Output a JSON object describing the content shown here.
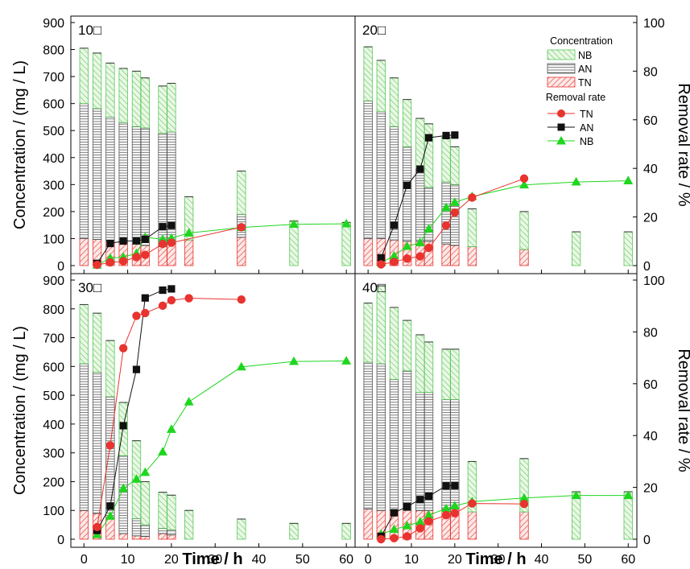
{
  "chart_data": {
    "type": "bar+line",
    "ylabel": "Concentration / (mg / L)",
    "y2label": "Removal rate / %",
    "xlabel": "Time / h",
    "xlim": [
      -3,
      62
    ],
    "ylim": [
      0,
      900
    ],
    "y2lim": [
      0,
      100
    ],
    "x_ticks": [
      0,
      10,
      20,
      30,
      40,
      50,
      60
    ],
    "y_ticks": [
      0,
      100,
      200,
      300,
      400,
      500,
      600,
      700,
      800,
      900
    ],
    "y2_ticks": [
      0,
      20,
      40,
      60,
      80,
      100
    ],
    "colors": {
      "TN": "#e8332f",
      "AN": "#111111",
      "NB": "#1fd61f",
      "bar_TN": "#e8332f",
      "bar_AN": "#555555",
      "bar_NB": "#5ac85a"
    },
    "legend": {
      "concentration_title": "Concentration",
      "concentration_items": [
        "NB",
        "AN",
        "TN"
      ],
      "removal_title": "Removal rate",
      "removal_items": [
        "TN",
        "AN",
        "NB"
      ]
    },
    "panels": [
      {
        "label": "10□",
        "time": [
          0,
          3,
          6,
          9,
          12,
          14,
          18,
          20,
          24,
          36,
          48,
          60
        ],
        "TN": [
          100,
          97,
          90,
          85,
          80,
          75,
          70,
          80,
          95,
          105,
          null,
          null
        ],
        "AN": [
          500,
          485,
          460,
          445,
          435,
          435,
          420,
          415,
          null,
          85,
          null,
          null
        ],
        "NB": [
          205,
          205,
          200,
          200,
          205,
          185,
          175,
          180,
          160,
          160,
          165,
          160
        ],
        "removal": {
          "TN": {
            "x": [
              3,
              6,
              9,
              12,
              14,
              18,
              20,
              36
            ],
            "y": [
              0.3,
              1.3,
              1.8,
              3.5,
              4.4,
              8.9,
              9.4,
              15.8
            ]
          },
          "AN": {
            "x": [
              3,
              6,
              9,
              12,
              14,
              18,
              20
            ],
            "y": [
              0.9,
              9.1,
              10.1,
              10.2,
              10.8,
              16.0,
              16.5
            ]
          },
          "NB": {
            "x": [
              3,
              6,
              9,
              12,
              14,
              18,
              20,
              24,
              36,
              48,
              60
            ],
            "y": [
              0.2,
              3.1,
              3.5,
              5.0,
              11.7,
              10.8,
              11.3,
              13.4,
              15.7,
              17.0,
              17.2
            ]
          }
        }
      },
      {
        "label": "20□",
        "time": [
          0,
          3,
          6,
          9,
          12,
          14,
          18,
          20,
          24,
          36,
          48,
          60
        ],
        "TN": [
          100,
          100,
          95,
          90,
          90,
          90,
          80,
          75,
          70,
          60,
          null,
          null
        ],
        "AN": [
          510,
          470,
          420,
          350,
          270,
          200,
          230,
          225,
          null,
          null,
          null,
          null
        ],
        "NB": [
          200,
          190,
          180,
          175,
          185,
          235,
          165,
          140,
          140,
          140,
          125,
          125
        ],
        "removal": {
          "TN": {
            "x": [
              3,
              6,
              9,
              12,
              14,
              18,
              20,
              24,
              36
            ],
            "y": [
              0.5,
              1.5,
              2.9,
              3.8,
              7.3,
              16.5,
              21.8,
              28.0,
              35.8
            ]
          },
          "AN": {
            "x": [
              3,
              6,
              9,
              12,
              14,
              18,
              20
            ],
            "y": [
              3.2,
              16.6,
              33.0,
              39.7,
              52.6,
              53.5,
              53.7
            ]
          },
          "NB": {
            "x": [
              3,
              6,
              9,
              12,
              14,
              18,
              20,
              24,
              36,
              48,
              60
            ],
            "y": [
              1.2,
              4.0,
              7.9,
              9.4,
              15.1,
              23.9,
              26.0,
              28.4,
              33.2,
              34.4,
              34.9
            ]
          }
        }
      },
      {
        "label": "30□",
        "time": [
          0,
          3,
          6,
          9,
          12,
          14,
          18,
          20,
          24,
          36,
          48,
          60
        ],
        "TN": [
          100,
          90,
          75,
          20,
          12,
          10,
          20,
          15,
          null,
          null,
          null,
          null
        ],
        "AN": [
          510,
          490,
          420,
          270,
          60,
          40,
          18,
          18,
          null,
          null,
          null,
          null
        ],
        "NB": [
          205,
          205,
          195,
          185,
          270,
          150,
          125,
          120,
          100,
          70,
          55,
          55
        ],
        "removal": {
          "TN": {
            "x": [
              3,
              6,
              9,
              12,
              14,
              18,
              20,
              24,
              36
            ],
            "y": [
              4.7,
              36.2,
              73.7,
              86.2,
              87.3,
              90.1,
              92.2,
              93.0,
              92.5
            ]
          },
          "AN": {
            "x": [
              3,
              6,
              9,
              12,
              14,
              18,
              20
            ],
            "y": [
              3.4,
              12.8,
              43.8,
              65.5,
              93.1,
              96.1,
              96.6
            ]
          },
          "NB": {
            "x": [
              3,
              6,
              9,
              12,
              14,
              18,
              20,
              24,
              36,
              48,
              60
            ],
            "y": [
              1.8,
              8.9,
              19.6,
              23.2,
              25.8,
              33.7,
              42.4,
              53.0,
              66.5,
              68.6,
              68.8
            ]
          }
        }
      },
      {
        "label": "40□",
        "time": [
          0,
          3,
          6,
          9,
          12,
          14,
          18,
          20,
          24,
          36,
          48,
          60
        ],
        "TN": [
          105,
          100,
          100,
          100,
          100,
          100,
          105,
          105,
          95,
          95,
          null,
          null
        ],
        "AN": [
          510,
          510,
          455,
          485,
          410,
          410,
          380,
          380,
          null,
          null,
          null,
          null
        ],
        "NB": [
          205,
          270,
          250,
          175,
          200,
          175,
          175,
          175,
          175,
          185,
          165,
          165
        ],
        "removal": {
          "TN": {
            "x": [
              3,
              6,
              9,
              12,
              14,
              18,
              20,
              24,
              36
            ],
            "y": [
              0.0,
              0.4,
              1.1,
              4.2,
              6.9,
              9.3,
              10.0,
              13.8,
              13.6
            ]
          },
          "AN": {
            "x": [
              3,
              6,
              9,
              12,
              14,
              18,
              20
            ],
            "y": [
              1.1,
              10.2,
              12.6,
              15.3,
              16.6,
              20.6,
              20.7
            ]
          },
          "NB": {
            "x": [
              3,
              6,
              9,
              12,
              14,
              18,
              20,
              24,
              36,
              48,
              60
            ],
            "y": [
              1.9,
              3.8,
              5.2,
              6.7,
              9.3,
              11.8,
              12.9,
              14.5,
              15.9,
              16.9,
              16.9
            ]
          }
        }
      }
    ]
  }
}
